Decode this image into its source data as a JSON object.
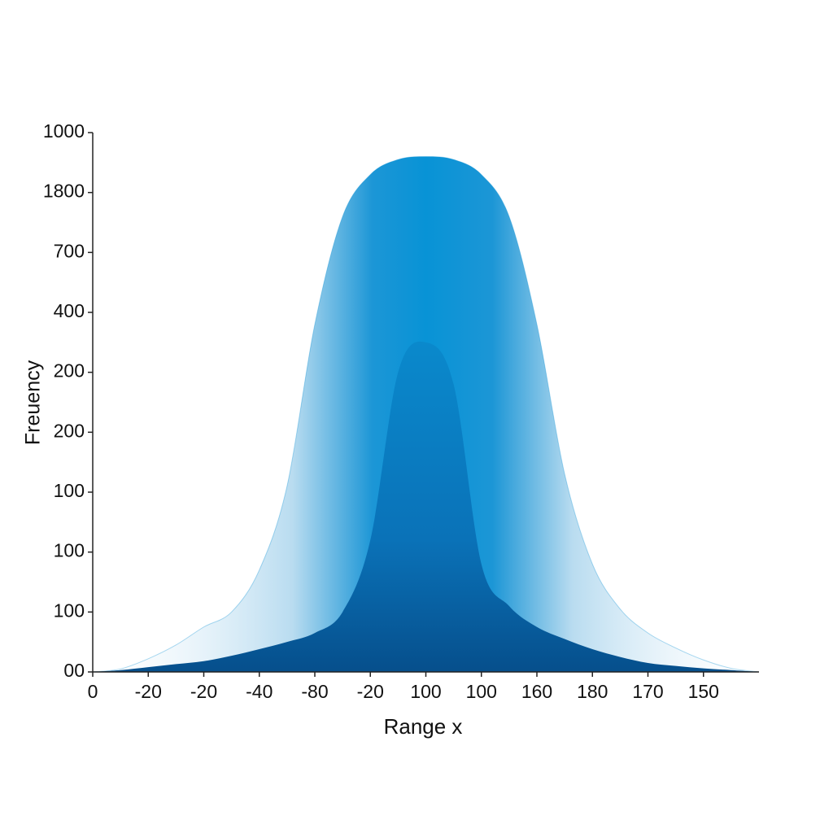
{
  "chart_data": {
    "type": "area",
    "xlabel": "Range x",
    "ylabel": "Freuency",
    "x": [
      0,
      0.5,
      1,
      1.5,
      2,
      2.5,
      3,
      3.5,
      4,
      4.5,
      5,
      5.5,
      6,
      6.5,
      7,
      7.5,
      8,
      8.5,
      9,
      9.5,
      10,
      10.5,
      11,
      11.5,
      12
    ],
    "series": [
      {
        "color": "#0a8fd4",
        "values": [
          0,
          0.05,
          0.22,
          0.45,
          0.75,
          1.0,
          1.7,
          3.1,
          5.8,
          7.6,
          8.3,
          8.55,
          8.6,
          8.55,
          8.3,
          7.6,
          5.8,
          3.3,
          1.8,
          1.05,
          0.65,
          0.4,
          0.2,
          0.06,
          0
        ]
      },
      {
        "color": "#0a5fa0",
        "values": [
          0,
          0.03,
          0.08,
          0.13,
          0.18,
          0.27,
          0.38,
          0.5,
          0.65,
          1.0,
          2.2,
          5.0,
          5.5,
          4.8,
          1.8,
          1.1,
          0.75,
          0.55,
          0.38,
          0.25,
          0.15,
          0.1,
          0.06,
          0.03,
          0
        ]
      }
    ],
    "xlim": [
      0,
      12
    ],
    "ylim": [
      0,
      9
    ],
    "xticks": [
      {
        "value": 0,
        "label": "0"
      },
      {
        "value": 1,
        "label": "-20"
      },
      {
        "value": 2,
        "label": "-20"
      },
      {
        "value": 3,
        "label": "-40"
      },
      {
        "value": 4,
        "label": "-80"
      },
      {
        "value": 5,
        "label": "-20"
      },
      {
        "value": 6,
        "label": "100"
      },
      {
        "value": 7,
        "label": "100"
      },
      {
        "value": 8,
        "label": "160"
      },
      {
        "value": 9,
        "label": "180"
      },
      {
        "value": 10,
        "label": "170"
      },
      {
        "value": 11,
        "label": "150"
      }
    ],
    "yticks": [
      {
        "value": 0,
        "label": "00"
      },
      {
        "value": 1,
        "label": "100"
      },
      {
        "value": 2,
        "label": "100"
      },
      {
        "value": 3,
        "label": "100"
      },
      {
        "value": 4,
        "label": "200"
      },
      {
        "value": 5,
        "label": "200"
      },
      {
        "value": 6,
        "label": "400"
      },
      {
        "value": 7,
        "label": "700"
      },
      {
        "value": 8,
        "label": "1800"
      },
      {
        "value": 9,
        "label": "1000"
      }
    ]
  }
}
